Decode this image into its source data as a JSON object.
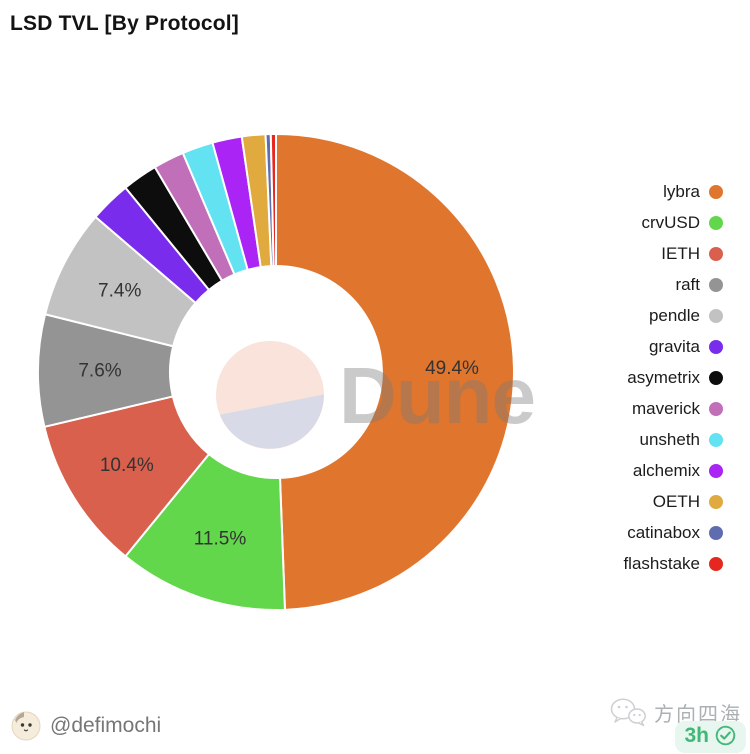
{
  "page": {
    "title": "LSD TVL [By Protocol]"
  },
  "watermark": {
    "brand": "Dune"
  },
  "chart_data": {
    "type": "pie",
    "donut": true,
    "title": "LSD TVL [By Protocol]",
    "units": "percent",
    "direction": "clockwise",
    "start_angle_deg": 0,
    "legend_position": "right",
    "note": "values for slices without printed labels are estimated from arc size",
    "series": [
      {
        "label": "lybra",
        "value": 49.4,
        "color": "#e0752d",
        "value_label": "49.4%"
      },
      {
        "label": "crvUSD",
        "value": 11.5,
        "color": "#63d74b",
        "value_label": "11.5%"
      },
      {
        "label": "IETH",
        "value": 10.4,
        "color": "#d8604d",
        "value_label": "10.4%"
      },
      {
        "label": "raft",
        "value": 7.6,
        "color": "#949494",
        "value_label": "7.6%"
      },
      {
        "label": "pendle",
        "value": 7.4,
        "color": "#c3c2c2",
        "value_label": "7.4%"
      },
      {
        "label": "gravita",
        "value": 2.8,
        "color": "#7a2ced"
      },
      {
        "label": "asymetrix",
        "value": 2.4,
        "color": "#0d0d0d"
      },
      {
        "label": "maverick",
        "value": 2.1,
        "color": "#c26fba"
      },
      {
        "label": "unsheth",
        "value": 2.1,
        "color": "#63e3f1"
      },
      {
        "label": "alchemix",
        "value": 2.0,
        "color": "#aa24f5"
      },
      {
        "label": "OETH",
        "value": 1.6,
        "color": "#e0aa3e"
      },
      {
        "label": "catinabox",
        "value": 0.35,
        "color": "#5f6cb0"
      },
      {
        "label": "flashstake",
        "value": 0.35,
        "color": "#e6271f"
      }
    ]
  },
  "footer": {
    "author_handle": "@defimochi",
    "share_source": "方向四海",
    "share_time": "3h"
  }
}
